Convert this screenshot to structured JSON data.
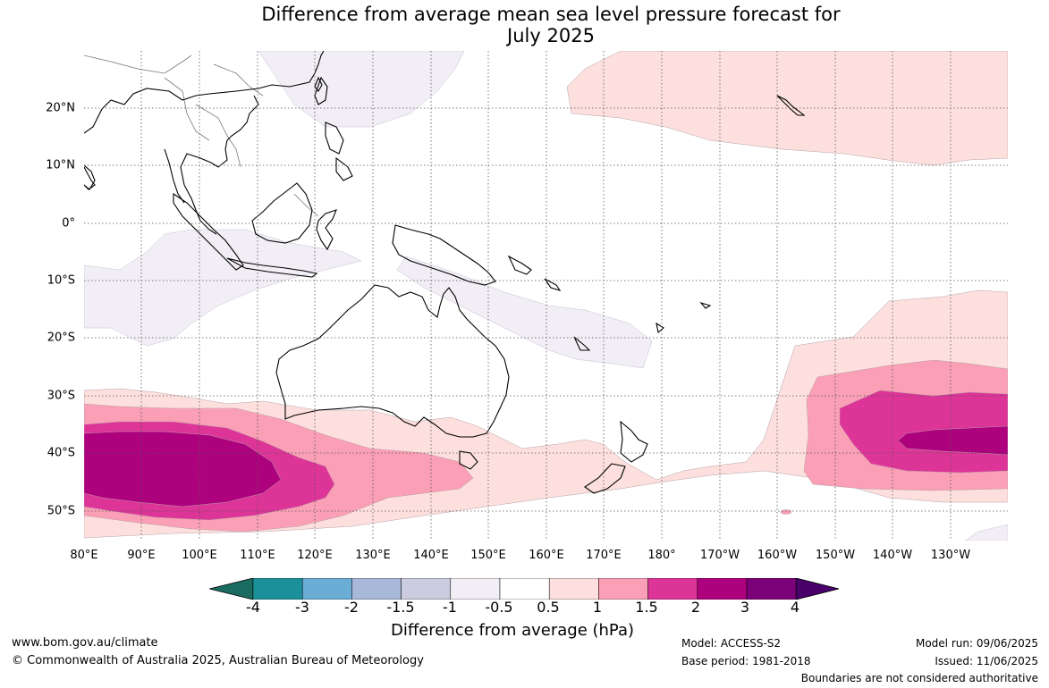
{
  "title_line1": "Difference from average mean sea level pressure forecast for",
  "title_line2": "July 2025",
  "lat_labels": [
    "20°N",
    "10°N",
    "0°",
    "10°S",
    "20°S",
    "30°S",
    "40°S",
    "50°S"
  ],
  "lon_labels": [
    "80°E",
    "90°E",
    "100°E",
    "110°E",
    "120°E",
    "130°E",
    "140°E",
    "150°E",
    "160°E",
    "170°E",
    "180°",
    "170°W",
    "160°W",
    "150°W",
    "140°W",
    "130°W"
  ],
  "colorbar": {
    "ticks": [
      "-4",
      "-3",
      "-2",
      "-1.5",
      "-1",
      "-0.5",
      "0.5",
      "1",
      "1.5",
      "2",
      "3",
      "4"
    ],
    "colors": [
      "#1a6b60",
      "#1a9099",
      "#6aaed6",
      "#a8b8d8",
      "#cccce0",
      "#f2eef5",
      "#ffffff",
      "#fde0dd",
      "#fa9fb5",
      "#dd3497",
      "#ae017e",
      "#7a0177",
      "#49006a"
    ],
    "label": "Difference from average (hPa)"
  },
  "footer": {
    "website": "www.bom.gov.au/climate",
    "copyright": "© Commonwealth of Australia 2025, Australian Bureau of Meteorology",
    "model": "Model: ACCESS-S2",
    "base_period": "Base period: 1981-2018",
    "model_run": "Model run: 09/06/2025",
    "issued": "Issued: 11/06/2025",
    "boundaries": "Boundaries are not considered authoritative"
  }
}
